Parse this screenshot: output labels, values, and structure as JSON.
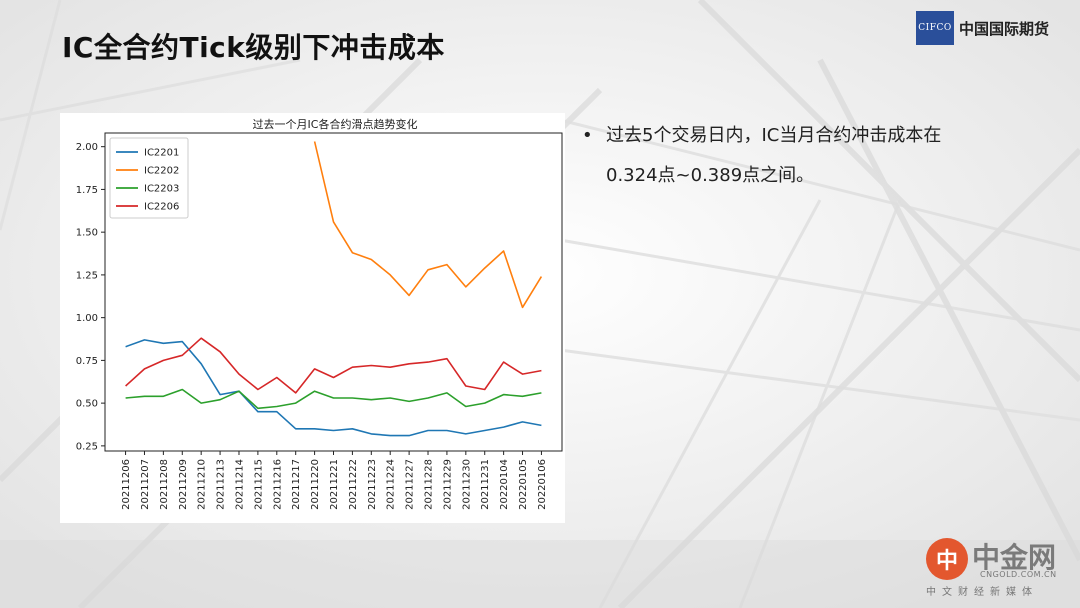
{
  "slide": {
    "title": "IC全合约Tick级别下冲击成本",
    "logo_abbr": "CIFCO",
    "logo_name": "中国国际期货",
    "bullet_line1": "过去5个交易日内，IC当月合约冲击成本在",
    "bullet_line2": "0.324点~0.389点之间。",
    "bullet_symbol": "•"
  },
  "watermark": {
    "glyph": "中",
    "name": "中金网",
    "url": "CNGOLD.COM.CN",
    "subtitle": "中文财经新媒体"
  },
  "colors": {
    "IC2201": "#1f77b4",
    "IC2202": "#ff7f0e",
    "IC2203": "#2ca02c",
    "IC2206": "#d62728",
    "logo_bg": "#2a4f9a"
  },
  "chart_data": {
    "type": "line",
    "title": "过去一个月IC各合约滑点趋势变化",
    "xlabel": "",
    "ylabel": "",
    "ylim": [
      0.22,
      2.08
    ],
    "yticks": [
      "0.25",
      "0.50",
      "0.75",
      "1.00",
      "1.25",
      "1.50",
      "1.75",
      "2.00"
    ],
    "grid": false,
    "legend_position": "upper-left",
    "categories": [
      "20211206",
      "20211207",
      "20211208",
      "20211209",
      "20211210",
      "20211213",
      "20211214",
      "20211215",
      "20211216",
      "20211217",
      "20211220",
      "20211221",
      "20211222",
      "20211223",
      "20211224",
      "20211227",
      "20211228",
      "20211229",
      "20211230",
      "20211231",
      "20220104",
      "20220105",
      "20220106"
    ],
    "series": [
      {
        "name": "IC2201",
        "values": [
          0.83,
          0.87,
          0.85,
          0.86,
          0.73,
          0.55,
          0.57,
          0.45,
          0.45,
          0.35,
          0.35,
          0.34,
          0.35,
          0.32,
          0.31,
          0.31,
          0.34,
          0.34,
          0.32,
          0.34,
          0.36,
          0.39,
          0.37
        ]
      },
      {
        "name": "IC2202",
        "values": [
          null,
          null,
          null,
          null,
          null,
          null,
          null,
          null,
          null,
          null,
          2.03,
          1.56,
          1.38,
          1.34,
          1.25,
          1.13,
          1.28,
          1.31,
          1.18,
          1.29,
          1.39,
          1.06,
          1.24
        ]
      },
      {
        "name": "IC2203",
        "values": [
          0.53,
          0.54,
          0.54,
          0.58,
          0.5,
          0.52,
          0.57,
          0.47,
          0.48,
          0.5,
          0.57,
          0.53,
          0.53,
          0.52,
          0.53,
          0.51,
          0.53,
          0.56,
          0.48,
          0.5,
          0.55,
          0.54,
          0.56
        ]
      },
      {
        "name": "IC2206",
        "values": [
          0.6,
          0.7,
          0.75,
          0.78,
          0.88,
          0.8,
          0.67,
          0.58,
          0.65,
          0.56,
          0.7,
          0.65,
          0.71,
          0.72,
          0.71,
          0.73,
          0.74,
          0.76,
          0.6,
          0.58,
          0.74,
          0.67,
          0.69
        ]
      }
    ]
  }
}
